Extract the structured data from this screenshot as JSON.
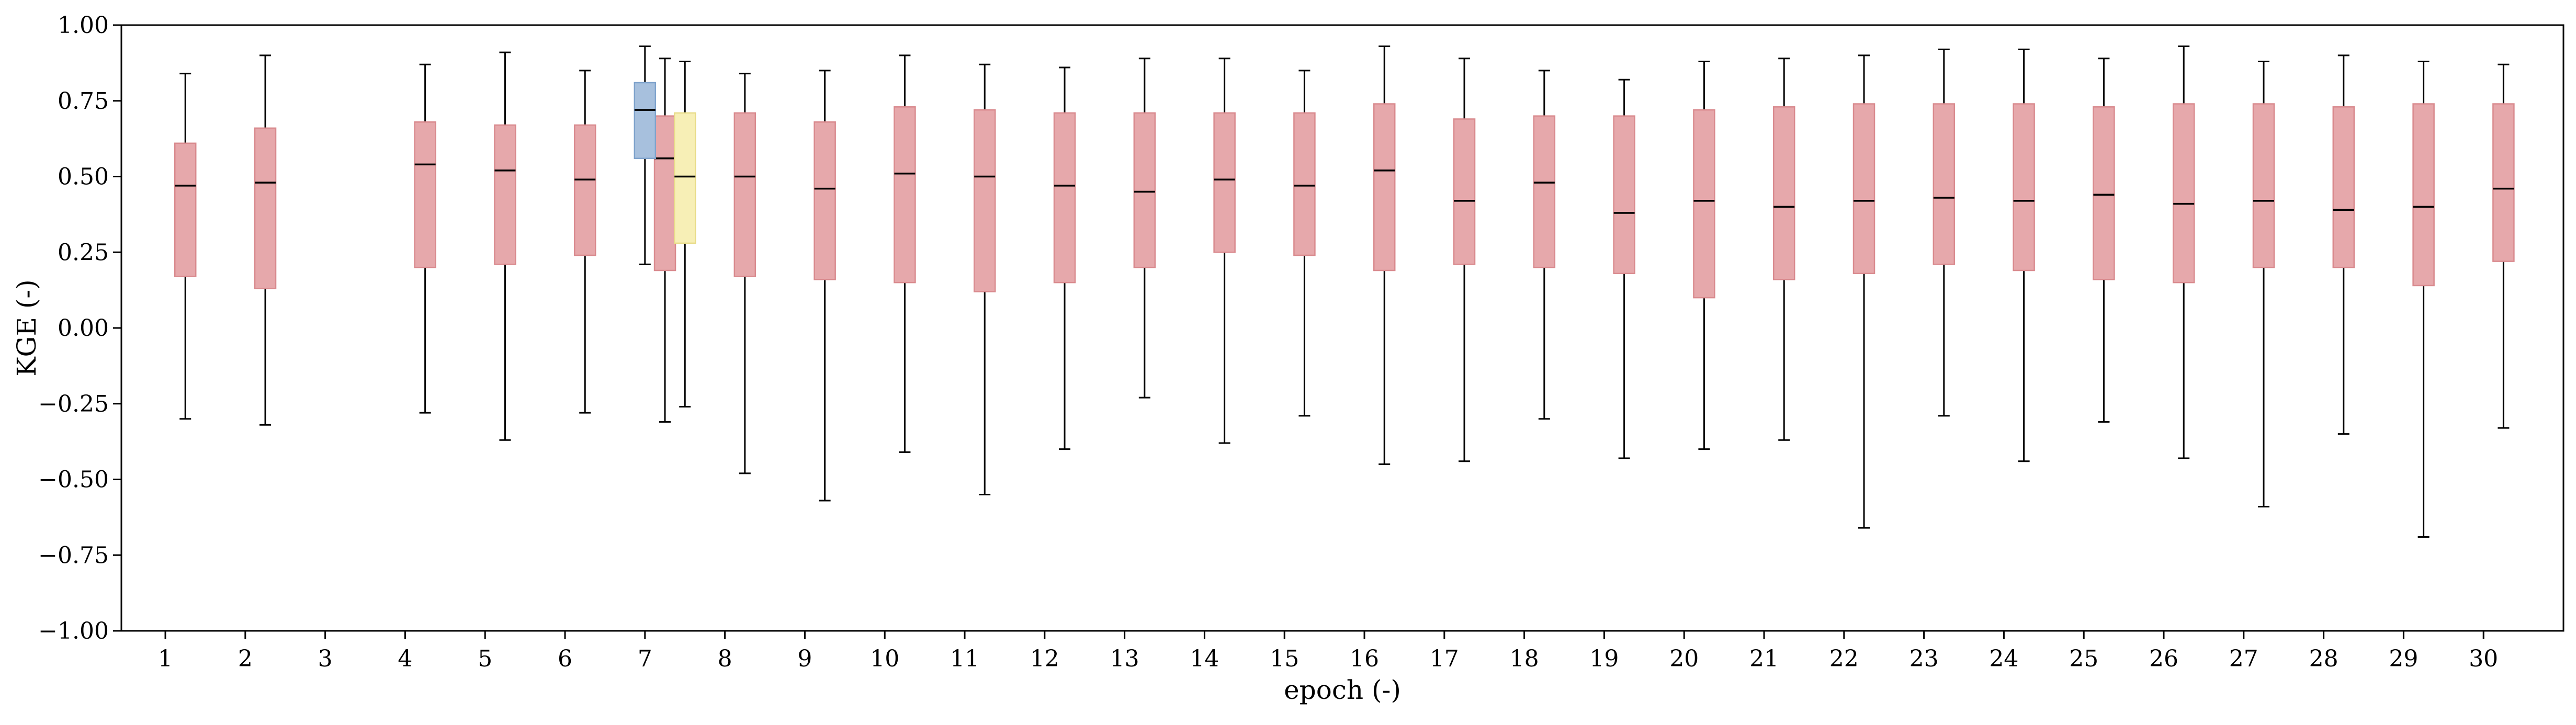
{
  "chart_data": {
    "type": "boxplot",
    "title": "",
    "xlabel": "epoch (-)",
    "ylabel": "KGE (-)",
    "ylim": [
      -1.0,
      1.0
    ],
    "xlim": [
      0.45,
      31.0
    ],
    "y_ticks": [
      -1.0,
      -0.75,
      -0.5,
      -0.25,
      0.0,
      0.25,
      0.5,
      0.75,
      1.0
    ],
    "y_tick_labels": [
      "−1.00",
      "−0.75",
      "−0.50",
      "−0.25",
      "0.00",
      "0.25",
      "0.50",
      "0.75",
      "1.00"
    ],
    "x_ticks": [
      1,
      2,
      3,
      4,
      5,
      6,
      7,
      8,
      9,
      10,
      11,
      12,
      13,
      14,
      15,
      16,
      17,
      18,
      19,
      20,
      21,
      22,
      23,
      24,
      25,
      26,
      27,
      28,
      29,
      30
    ],
    "x_tick_labels": [
      "1",
      "2",
      "3",
      "4",
      "5",
      "6",
      "7",
      "8",
      "9",
      "10",
      "11",
      "12",
      "13",
      "14",
      "15",
      "16",
      "17",
      "18",
      "19",
      "20",
      "21",
      "22",
      "23",
      "24",
      "25",
      "26",
      "27",
      "28",
      "29",
      "30"
    ],
    "grid": false,
    "series": [
      {
        "name": "series-red",
        "color": "#e6a8ab",
        "edge_color": "#d98a8e",
        "boxes": [
          {
            "x": 1.25,
            "whislo": -0.3,
            "q1": 0.17,
            "med": 0.47,
            "q3": 0.61,
            "whishi": 0.84
          },
          {
            "x": 2.25,
            "whislo": -0.32,
            "q1": 0.13,
            "med": 0.48,
            "q3": 0.66,
            "whishi": 0.9
          },
          {
            "x": 4.25,
            "whislo": -0.28,
            "q1": 0.2,
            "med": 0.54,
            "q3": 0.68,
            "whishi": 0.87
          },
          {
            "x": 5.25,
            "whislo": -0.37,
            "q1": 0.21,
            "med": 0.52,
            "q3": 0.67,
            "whishi": 0.91
          },
          {
            "x": 6.25,
            "whislo": -0.28,
            "q1": 0.24,
            "med": 0.49,
            "q3": 0.67,
            "whishi": 0.85
          },
          {
            "x": 7.25,
            "whislo": -0.31,
            "q1": 0.19,
            "med": 0.56,
            "q3": 0.7,
            "whishi": 0.89
          },
          {
            "x": 8.25,
            "whislo": -0.48,
            "q1": 0.17,
            "med": 0.5,
            "q3": 0.71,
            "whishi": 0.84
          },
          {
            "x": 9.25,
            "whislo": -0.57,
            "q1": 0.16,
            "med": 0.46,
            "q3": 0.68,
            "whishi": 0.85
          },
          {
            "x": 10.25,
            "whislo": -0.41,
            "q1": 0.15,
            "med": 0.51,
            "q3": 0.73,
            "whishi": 0.9
          },
          {
            "x": 11.25,
            "whislo": -0.55,
            "q1": 0.12,
            "med": 0.5,
            "q3": 0.72,
            "whishi": 0.87
          },
          {
            "x": 12.25,
            "whislo": -0.4,
            "q1": 0.15,
            "med": 0.47,
            "q3": 0.71,
            "whishi": 0.86
          },
          {
            "x": 13.25,
            "whislo": -0.23,
            "q1": 0.2,
            "med": 0.45,
            "q3": 0.71,
            "whishi": 0.89
          },
          {
            "x": 14.25,
            "whislo": -0.38,
            "q1": 0.25,
            "med": 0.49,
            "q3": 0.71,
            "whishi": 0.89
          },
          {
            "x": 15.25,
            "whislo": -0.29,
            "q1": 0.24,
            "med": 0.47,
            "q3": 0.71,
            "whishi": 0.85
          },
          {
            "x": 16.25,
            "whislo": -0.45,
            "q1": 0.19,
            "med": 0.52,
            "q3": 0.74,
            "whishi": 0.93
          },
          {
            "x": 17.25,
            "whislo": -0.44,
            "q1": 0.21,
            "med": 0.42,
            "q3": 0.69,
            "whishi": 0.89
          },
          {
            "x": 18.25,
            "whislo": -0.3,
            "q1": 0.2,
            "med": 0.48,
            "q3": 0.7,
            "whishi": 0.85
          },
          {
            "x": 19.25,
            "whislo": -0.43,
            "q1": 0.18,
            "med": 0.38,
            "q3": 0.7,
            "whishi": 0.82
          },
          {
            "x": 20.25,
            "whislo": -0.4,
            "q1": 0.1,
            "med": 0.42,
            "q3": 0.72,
            "whishi": 0.88
          },
          {
            "x": 21.25,
            "whislo": -0.37,
            "q1": 0.16,
            "med": 0.4,
            "q3": 0.73,
            "whishi": 0.89
          },
          {
            "x": 22.25,
            "whislo": -0.66,
            "q1": 0.18,
            "med": 0.42,
            "q3": 0.74,
            "whishi": 0.9
          },
          {
            "x": 23.25,
            "whislo": -0.29,
            "q1": 0.21,
            "med": 0.43,
            "q3": 0.74,
            "whishi": 0.92
          },
          {
            "x": 24.25,
            "whislo": -0.44,
            "q1": 0.19,
            "med": 0.42,
            "q3": 0.74,
            "whishi": 0.92
          },
          {
            "x": 25.25,
            "whislo": -0.31,
            "q1": 0.16,
            "med": 0.44,
            "q3": 0.73,
            "whishi": 0.89
          },
          {
            "x": 26.25,
            "whislo": -0.43,
            "q1": 0.15,
            "med": 0.41,
            "q3": 0.74,
            "whishi": 0.93
          },
          {
            "x": 27.25,
            "whislo": -0.59,
            "q1": 0.2,
            "med": 0.42,
            "q3": 0.74,
            "whishi": 0.88
          },
          {
            "x": 28.25,
            "whislo": -0.35,
            "q1": 0.2,
            "med": 0.39,
            "q3": 0.73,
            "whishi": 0.9
          },
          {
            "x": 29.25,
            "whislo": -0.69,
            "q1": 0.14,
            "med": 0.4,
            "q3": 0.74,
            "whishi": 0.88
          },
          {
            "x": 30.25,
            "whislo": -0.33,
            "q1": 0.22,
            "med": 0.46,
            "q3": 0.74,
            "whishi": 0.87
          }
        ]
      },
      {
        "name": "series-blue",
        "color": "#a7c0dd",
        "edge_color": "#7fa3cc",
        "boxes": [
          {
            "x": 7.0,
            "whislo": 0.21,
            "q1": 0.56,
            "med": 0.72,
            "q3": 0.81,
            "whishi": 0.93
          }
        ]
      },
      {
        "name": "series-yellow",
        "color": "#f7efb6",
        "edge_color": "#e8dc8a",
        "boxes": [
          {
            "x": 7.5,
            "whislo": -0.26,
            "q1": 0.28,
            "med": 0.5,
            "q3": 0.71,
            "whishi": 0.88
          }
        ]
      }
    ]
  }
}
